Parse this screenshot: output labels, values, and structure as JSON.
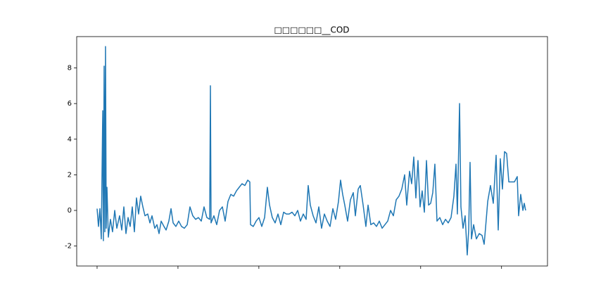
{
  "chart_data": {
    "type": "line",
    "title": "□□□□□□__COD",
    "x": [
      0,
      17,
      35,
      52,
      70,
      78,
      87,
      96,
      104,
      113,
      122,
      139,
      165,
      191,
      218,
      244,
      278,
      305,
      331,
      357,
      383,
      409,
      435,
      461,
      487,
      513,
      539,
      566,
      592,
      626,
      653,
      679,
      713,
      740,
      766,
      792,
      827,
      853,
      887,
      914,
      940,
      974,
      1009,
      1044,
      1079,
      1114,
      1148,
      1183,
      1218,
      1253,
      1288,
      1322,
      1357,
      1392,
      1401,
      1409,
      1444,
      1479,
      1514,
      1549,
      1583,
      1618,
      1653,
      1688,
      1723,
      1757,
      1792,
      1827,
      1862,
      1888,
      1897,
      1931,
      1966,
      2001,
      2036,
      2071,
      2105,
      2132,
      2166,
      2201,
      2236,
      2271,
      2306,
      2340,
      2375,
      2410,
      2445,
      2480,
      2514,
      2549,
      2584,
      2610,
      2636,
      2671,
      2706,
      2741,
      2775,
      2810,
      2845,
      2880,
      2915,
      2949,
      2984,
      3010,
      3036,
      3062,
      3097,
      3132,
      3167,
      3193,
      3228,
      3254,
      3289,
      3323,
      3350,
      3384,
      3419,
      3454,
      3489,
      3524,
      3558,
      3593,
      3628,
      3663,
      3698,
      3732,
      3767,
      3802,
      3828,
      3863,
      3889,
      3915,
      3941,
      3967,
      3993,
      4019,
      4046,
      4072,
      4098,
      4124,
      4150,
      4176,
      4202,
      4237,
      4272,
      4307,
      4341,
      4376,
      4411,
      4437,
      4454,
      4481,
      4498,
      4524,
      4550,
      4576,
      4594,
      4611,
      4628,
      4655,
      4689,
      4724,
      4759,
      4785,
      4802,
      4829,
      4863,
      4898,
      4933,
      4959,
      4985,
      5011,
      5037,
      5063,
      5090,
      5124,
      5159,
      5194,
      5211,
      5237,
      5264,
      5281,
      5298
    ],
    "series": [
      {
        "color": "#1f77b4",
        "values": [
          0.1,
          -0.9,
          0.1,
          -1.6,
          5.6,
          -1.7,
          8.1,
          -1.2,
          9.2,
          -1.0,
          1.3,
          -1.5,
          -0.5,
          -1.2,
          0.0,
          -1.0,
          -0.3,
          -1.1,
          0.2,
          -1.3,
          -0.4,
          -0.9,
          0.2,
          -1.2,
          0.7,
          -0.2,
          0.8,
          0.2,
          -0.3,
          -0.2,
          -0.7,
          -0.3,
          -1.0,
          -0.8,
          -1.3,
          -0.6,
          -0.9,
          -1.1,
          -0.6,
          0.1,
          -0.7,
          -0.9,
          -0.6,
          -0.9,
          -1.0,
          -0.8,
          0.2,
          -0.3,
          -0.5,
          -0.4,
          -0.6,
          0.2,
          -0.4,
          -0.5,
          7.0,
          -0.7,
          -0.3,
          -0.8,
          0.0,
          0.2,
          -0.6,
          0.5,
          0.9,
          0.8,
          1.1,
          1.3,
          1.5,
          1.4,
          1.7,
          1.6,
          -0.8,
          -0.9,
          -0.6,
          -0.4,
          -0.9,
          -0.4,
          1.3,
          0.3,
          -0.4,
          -0.7,
          -0.2,
          -0.8,
          -0.1,
          -0.2,
          -0.2,
          -0.1,
          -0.3,
          0.0,
          -0.6,
          -0.2,
          -0.5,
          1.4,
          0.3,
          -0.3,
          -0.7,
          0.2,
          -1.0,
          -0.2,
          -0.6,
          -0.9,
          0.1,
          -0.5,
          0.5,
          1.7,
          0.9,
          0.3,
          -0.6,
          0.6,
          1.0,
          -0.3,
          1.2,
          1.4,
          0.3,
          -0.9,
          0.3,
          -0.8,
          -0.7,
          -0.9,
          -0.6,
          -1.0,
          -0.8,
          -0.6,
          0.0,
          -0.3,
          0.6,
          0.8,
          1.2,
          2.0,
          0.3,
          2.2,
          1.5,
          3.0,
          0.7,
          2.8,
          0.2,
          1.1,
          -0.1,
          2.8,
          0.3,
          0.4,
          1.0,
          2.6,
          -0.6,
          -0.4,
          -0.8,
          -0.5,
          -0.7,
          -0.4,
          0.8,
          2.6,
          -0.2,
          6.0,
          0.2,
          -1.0,
          -0.3,
          -2.5,
          -1.1,
          2.7,
          -1.6,
          -0.8,
          -1.6,
          -1.3,
          -1.4,
          -1.9,
          -1.0,
          0.5,
          1.4,
          0.4,
          3.1,
          -1.1,
          2.9,
          1.2,
          3.3,
          3.2,
          1.6,
          1.6,
          1.6,
          1.9,
          -0.3,
          0.9,
          0.0,
          0.4,
          0.0
        ]
      }
    ],
    "xlim": [
      -252,
      5568
    ],
    "xticks": [
      0,
      1000,
      2000,
      3000,
      4000,
      5000
    ],
    "ylim": [
      -3.12,
      9.76
    ],
    "yticks": [
      -2,
      0,
      2,
      4,
      6,
      8
    ]
  }
}
